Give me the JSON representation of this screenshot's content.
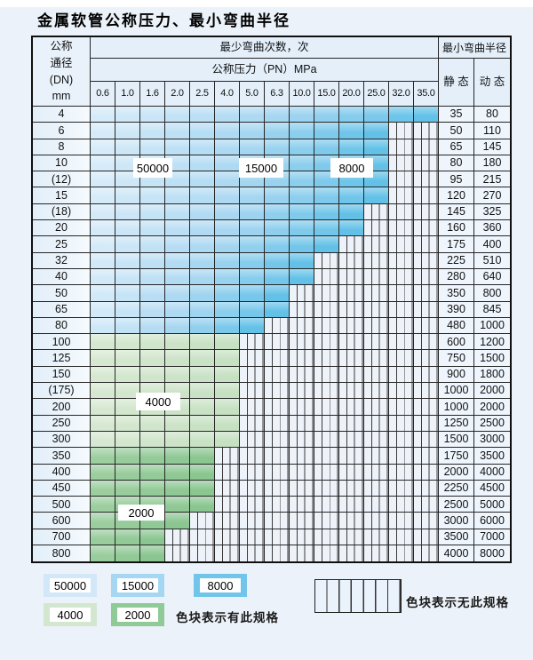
{
  "title": "金属软管公称压力、最小弯曲半径",
  "table": {
    "corner_lines": [
      "公称",
      "通径",
      "(DN)",
      "mm"
    ],
    "cycles_header": "最少弯曲次数，次",
    "pressure_header": "公称压力（PN）MPa",
    "radius_header": "最小弯曲半径",
    "static_header": "静 态",
    "dynamic_header": "动 态",
    "pressures": [
      "0.6",
      "1.0",
      "1.6",
      "2.0",
      "2.5",
      "4.0",
      "5.0",
      "6.3",
      "10.0",
      "15.0",
      "20.0",
      "25.0",
      "32.0",
      "35.0"
    ],
    "rows": [
      {
        "dn": "4",
        "zone": "blue",
        "colored": 14,
        "static": "35",
        "dynamic": "80"
      },
      {
        "dn": "6",
        "zone": "blue",
        "colored": 12,
        "static": "50",
        "dynamic": "110"
      },
      {
        "dn": "8",
        "zone": "blue",
        "colored": 12,
        "static": "65",
        "dynamic": "145"
      },
      {
        "dn": "10",
        "zone": "blue",
        "colored": 12,
        "static": "80",
        "dynamic": "180"
      },
      {
        "dn": "(12)",
        "zone": "blue",
        "colored": 12,
        "static": "95",
        "dynamic": "215"
      },
      {
        "dn": "15",
        "zone": "blue",
        "colored": 12,
        "static": "120",
        "dynamic": "270"
      },
      {
        "dn": "(18)",
        "zone": "blue",
        "colored": 11,
        "static": "145",
        "dynamic": "325"
      },
      {
        "dn": "20",
        "zone": "blue",
        "colored": 11,
        "static": "160",
        "dynamic": "360"
      },
      {
        "dn": "25",
        "zone": "blue",
        "colored": 10,
        "static": "175",
        "dynamic": "400"
      },
      {
        "dn": "32",
        "zone": "blue",
        "colored": 9,
        "static": "225",
        "dynamic": "510"
      },
      {
        "dn": "40",
        "zone": "blue",
        "colored": 9,
        "static": "280",
        "dynamic": "640"
      },
      {
        "dn": "50",
        "zone": "blue",
        "colored": 8,
        "static": "350",
        "dynamic": "800"
      },
      {
        "dn": "65",
        "zone": "blue",
        "colored": 8,
        "static": "390",
        "dynamic": "845"
      },
      {
        "dn": "80",
        "zone": "blue",
        "colored": 7,
        "static": "480",
        "dynamic": "1000"
      },
      {
        "dn": "100",
        "zone": "green_light",
        "colored": 6,
        "static": "600",
        "dynamic": "1200"
      },
      {
        "dn": "125",
        "zone": "green_light",
        "colored": 6,
        "static": "750",
        "dynamic": "1500"
      },
      {
        "dn": "150",
        "zone": "green_light",
        "colored": 6,
        "static": "900",
        "dynamic": "1800"
      },
      {
        "dn": "(175)",
        "zone": "green_light",
        "colored": 6,
        "static": "1000",
        "dynamic": "2000"
      },
      {
        "dn": "200",
        "zone": "green_light",
        "colored": 6,
        "static": "1000",
        "dynamic": "2000"
      },
      {
        "dn": "250",
        "zone": "green_light",
        "colored": 6,
        "static": "1250",
        "dynamic": "2500"
      },
      {
        "dn": "300",
        "zone": "green_light",
        "colored": 6,
        "static": "1500",
        "dynamic": "3000"
      },
      {
        "dn": "350",
        "zone": "green_dark",
        "colored": 5,
        "static": "1750",
        "dynamic": "3500"
      },
      {
        "dn": "400",
        "zone": "green_dark",
        "colored": 5,
        "static": "2000",
        "dynamic": "4000"
      },
      {
        "dn": "450",
        "zone": "green_dark",
        "colored": 5,
        "static": "2250",
        "dynamic": "4500"
      },
      {
        "dn": "500",
        "zone": "green_dark",
        "colored": 5,
        "static": "2500",
        "dynamic": "5000"
      },
      {
        "dn": "600",
        "zone": "green_dark",
        "colored": 4,
        "static": "3000",
        "dynamic": "6000"
      },
      {
        "dn": "700",
        "zone": "green_dark",
        "colored": 3,
        "static": "3500",
        "dynamic": "7000"
      },
      {
        "dn": "800",
        "zone": "green_dark",
        "colored": 3,
        "static": "4000",
        "dynamic": "8000"
      }
    ]
  },
  "zone_labels": [
    "50000",
    "15000",
    "8000",
    "4000",
    "2000"
  ],
  "legend": {
    "items": [
      {
        "label": "50000",
        "color": "#d2e8f8"
      },
      {
        "label": "15000",
        "color": "#a6d7f2"
      },
      {
        "label": "8000",
        "color": "#72c5ea"
      },
      {
        "label": "4000",
        "color": "#d3e7cf"
      },
      {
        "label": "2000",
        "color": "#90ca97"
      }
    ],
    "has_spec_note": "色块表示有此规格",
    "no_spec_note": "色块表示无此规格"
  },
  "colors": {
    "blue_light": "#ddeefa",
    "blue_mid": "#a6d6f1",
    "blue_dark": "#63c1e8",
    "green_light_start": "#d9ead4",
    "green_light_end": "#c6e0c2",
    "green_dark_start": "#a0d0a3",
    "green_dark_end": "#8bc691",
    "hatch_bg": "#eef3fa",
    "page_bg": "#ecf2f9"
  }
}
